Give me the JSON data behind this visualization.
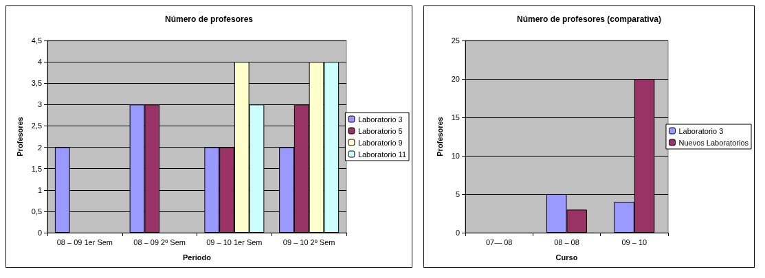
{
  "chart_data": [
    {
      "type": "bar",
      "title": "Número de profesores",
      "xlabel": "Periodo",
      "ylabel": "Profesores",
      "categories": [
        "08 – 09 1er Sem",
        "08 – 09 2º Sem",
        "09 – 10 1er Sem",
        "09 – 10 2º Sem"
      ],
      "series": [
        {
          "name": "Laboratorio 3",
          "color": "#9999ff",
          "values": [
            2,
            3,
            2,
            2
          ]
        },
        {
          "name": "Laboratorio 5",
          "color": "#993366",
          "values": [
            null,
            3,
            2,
            3
          ]
        },
        {
          "name": "Laboratorio 9",
          "color": "#ffffcc",
          "values": [
            null,
            null,
            4,
            4
          ]
        },
        {
          "name": "Laboratorio 11",
          "color": "#ccffff",
          "values": [
            null,
            null,
            3,
            4
          ]
        }
      ],
      "ylim": [
        0,
        4.5
      ],
      "yticks": [
        0,
        {
          "value": 0.5,
          "label": "0,5"
        },
        1,
        {
          "value": 1.5,
          "label": "1,5"
        },
        2,
        {
          "value": 2.5,
          "label": "2,5"
        },
        3,
        {
          "value": 3.5,
          "label": "3,5"
        },
        4,
        {
          "value": 4.5,
          "label": "4,5"
        }
      ],
      "grid": "y",
      "legend": "right"
    },
    {
      "type": "bar",
      "title": "Número de profesores (comparativa)",
      "xlabel": "Curso",
      "ylabel": "Profesores",
      "categories": [
        "07— 08",
        "08 – 08",
        "09 – 10"
      ],
      "series": [
        {
          "name": "Laboratorio 3",
          "color": "#9999ff",
          "values": [
            null,
            5,
            4
          ]
        },
        {
          "name": "Nuevos Laboratorios",
          "color": "#993366",
          "values": [
            null,
            3,
            20
          ]
        }
      ],
      "ylim": [
        0,
        25
      ],
      "yticks": [
        0,
        5,
        10,
        15,
        20,
        25
      ],
      "grid": "y",
      "legend": "right"
    }
  ]
}
